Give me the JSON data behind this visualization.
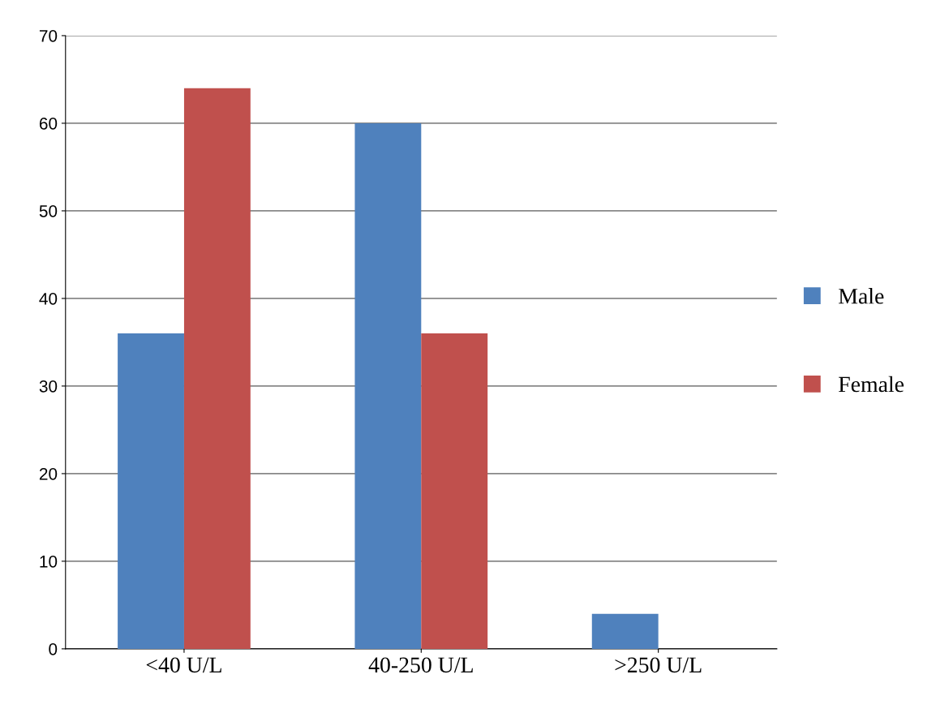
{
  "chart_data": {
    "type": "bar",
    "categories": [
      "<40 U/L",
      "40-250 U/L",
      ">250 U/L"
    ],
    "series": [
      {
        "name": "Male",
        "color": "#4f81bd",
        "values": [
          36,
          60,
          4
        ]
      },
      {
        "name": "Female",
        "color": "#c0504d",
        "values": [
          64,
          36,
          0
        ]
      }
    ],
    "ylim": [
      0,
      70
    ],
    "yticks": [
      0,
      10,
      20,
      30,
      40,
      50,
      60,
      70
    ],
    "grid": "y",
    "legend": "right"
  }
}
